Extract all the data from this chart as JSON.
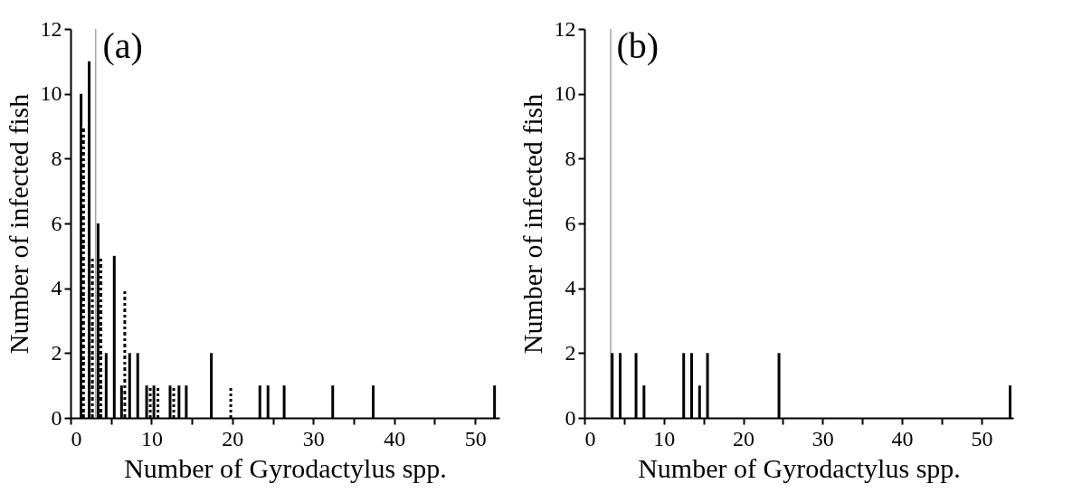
{
  "chart_data": [
    {
      "type": "bar",
      "title": "(a)",
      "xlabel": "Number of Gyrodactylus spp.",
      "ylabel": "Number of infected fish",
      "xlim": [
        0,
        53
      ],
      "ylim": [
        0,
        12
      ],
      "xticks": [
        0,
        {
          "value": 5,
          "label": null
        },
        10,
        {
          "value": 15,
          "label": null
        },
        20,
        {
          "value": 25,
          "label": null
        },
        30,
        {
          "value": 35,
          "label": null
        },
        40,
        {
          "value": 45,
          "label": null
        },
        50
      ],
      "yticks": [
        0,
        2,
        4,
        6,
        8,
        10,
        12
      ],
      "grid": false,
      "legend": false,
      "series": [
        {
          "color": "#000000",
          "line_style": "solid",
          "x": [
            1.3,
            2.3,
            3.4,
            4.4,
            5.4,
            6.3,
            7.3,
            8.3,
            9.4,
            10.3,
            12.3,
            13.4,
            14.3,
            17.4,
            23.4,
            24.4,
            26.4,
            32.4,
            37.4,
            52.4
          ],
          "values": [
            10,
            11,
            6,
            2,
            5,
            1,
            2,
            2,
            1,
            1,
            1,
            1,
            1,
            2,
            1,
            1,
            1,
            1,
            1,
            1
          ]
        },
        {
          "color": "#000000",
          "line_style": "dotted",
          "x": [
            1.6,
            2.7,
            3.75,
            6.7,
            9.85,
            10.8,
            12.75,
            19.8
          ],
          "values": [
            9,
            5,
            5,
            4,
            1,
            1,
            1,
            1
          ]
        }
      ],
      "ref_lines": [
        {
          "axis": "x",
          "value": 3.1,
          "color": "#a6a6a6"
        }
      ]
    },
    {
      "type": "bar",
      "title": "(b)",
      "xlabel": "Number of Gyrodactylus spp.",
      "ylabel": "Number of infected fish",
      "xlim": [
        0,
        54
      ],
      "ylim": [
        0,
        12
      ],
      "xticks": [
        0,
        {
          "value": 5,
          "label": null
        },
        10,
        {
          "value": 15,
          "label": null
        },
        20,
        {
          "value": 25,
          "label": null
        },
        30,
        {
          "value": 35,
          "label": null
        },
        40,
        {
          "value": 45,
          "label": null
        },
        50
      ],
      "yticks": [
        0,
        2,
        4,
        6,
        8,
        10,
        12
      ],
      "grid": false,
      "legend": false,
      "series": [
        {
          "color": "#000000",
          "line_style": "solid",
          "x": [
            3.5,
            4.5,
            6.5,
            7.5,
            12.5,
            13.5,
            14.5,
            15.5,
            24.5,
            53.6
          ],
          "values": [
            2,
            2,
            2,
            1,
            2,
            2,
            1,
            2,
            2,
            1
          ]
        }
      ],
      "ref_lines": [
        {
          "axis": "x",
          "value": 3.3,
          "color": "#a6a6a6"
        }
      ]
    }
  ]
}
